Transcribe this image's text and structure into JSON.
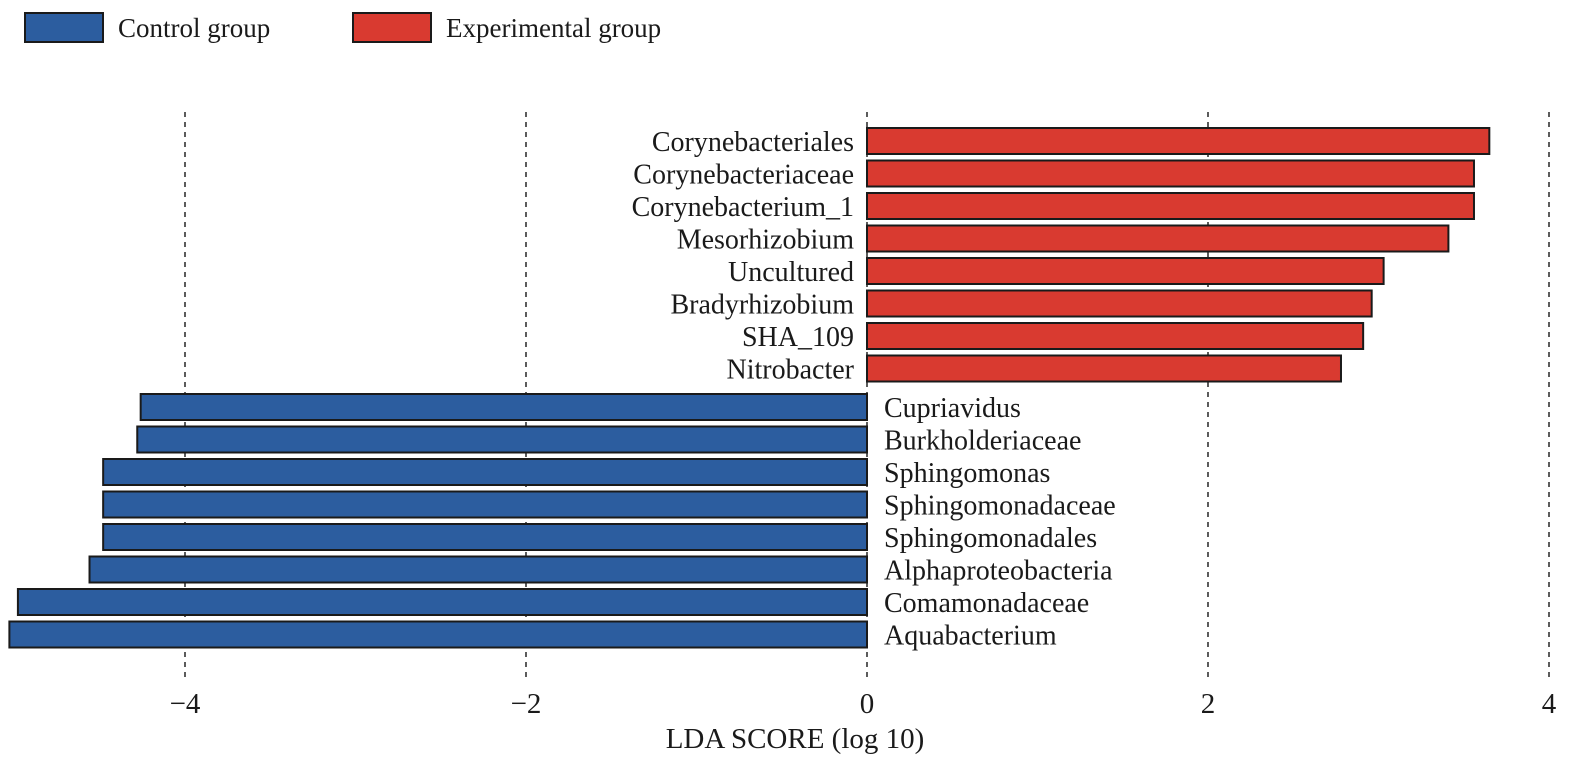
{
  "chart_data": {
    "type": "bar",
    "orientation": "horizontal",
    "title": "",
    "xlabel": "LDA SCORE (log 10)",
    "ylabel": "",
    "xlim": [
      -5.1,
      4.05
    ],
    "xticks": [
      {
        "value": -4,
        "label": "−4"
      },
      {
        "value": -2,
        "label": "−2"
      },
      {
        "value": 0,
        "label": "0"
      },
      {
        "value": 2,
        "label": "2"
      },
      {
        "value": 4,
        "label": "4"
      }
    ],
    "grid": "vertical dashed at ticks",
    "legend_position": "top-left",
    "series": [
      {
        "name": "Control group",
        "color": "#2c5d9f"
      },
      {
        "name": "Experimental group",
        "color": "#d93a30"
      }
    ],
    "bars": [
      {
        "label": "Corynebacteriales",
        "value": 3.65,
        "group": "Experimental group"
      },
      {
        "label": "Corynebacteriaceae",
        "value": 3.56,
        "group": "Experimental group"
      },
      {
        "label": "Corynebacterium_1",
        "value": 3.56,
        "group": "Experimental group"
      },
      {
        "label": "Mesorhizobium",
        "value": 3.41,
        "group": "Experimental group"
      },
      {
        "label": "Uncultured",
        "value": 3.03,
        "group": "Experimental group"
      },
      {
        "label": "Bradyrhizobium",
        "value": 2.96,
        "group": "Experimental group"
      },
      {
        "label": "SHA_109",
        "value": 2.91,
        "group": "Experimental group"
      },
      {
        "label": "Nitrobacter",
        "value": 2.78,
        "group": "Experimental group"
      },
      {
        "label": "Cupriavidus",
        "value": -4.26,
        "group": "Control group"
      },
      {
        "label": "Burkholderiaceae",
        "value": -4.28,
        "group": "Control group"
      },
      {
        "label": "Sphingomonas",
        "value": -4.48,
        "group": "Control group"
      },
      {
        "label": "Sphingomonadaceae",
        "value": -4.48,
        "group": "Control group"
      },
      {
        "label": "Sphingomonadales",
        "value": -4.48,
        "group": "Control group"
      },
      {
        "label": "Alphaproteobacteria",
        "value": -4.56,
        "group": "Control group"
      },
      {
        "label": "Comamonadaceae",
        "value": -4.98,
        "group": "Control group"
      },
      {
        "label": "Aquabacterium",
        "value": -5.03,
        "group": "Control group"
      }
    ]
  }
}
